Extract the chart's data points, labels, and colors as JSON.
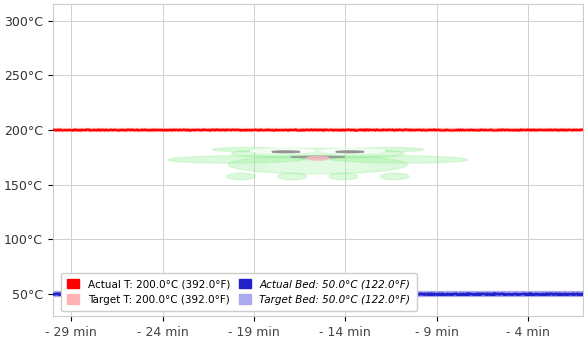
{
  "x_ticks": [
    -29,
    -24,
    -19,
    -14,
    -9,
    -4
  ],
  "x_tick_labels": [
    "- 29 min",
    "- 24 min",
    "- 19 min",
    "- 14 min",
    "- 9 min",
    "- 4 min"
  ],
  "x_min": -30,
  "x_max": -1,
  "y_ticks": [
    50,
    100,
    150,
    200,
    250,
    300
  ],
  "y_tick_labels": [
    "50°C",
    "100°C",
    "150°C",
    "200°C",
    "250°C",
    "300°C"
  ],
  "y_min": 30,
  "y_max": 315,
  "hotend_actual_temp": 200.0,
  "hotend_target_temp": 200.0,
  "bed_actual_temp": 50.0,
  "bed_target_temp": 50.0,
  "hotend_variation": 0.5,
  "bed_variation": 0.5,
  "color_actual_hotend": "#ff0000",
  "color_target_hotend": "#ffb3b3",
  "color_actual_bed": "#2222cc",
  "color_target_bed": "#aaaaee",
  "background_color": "#ffffff",
  "grid_color": "#d0d0d0",
  "legend_labels": [
    "Actual T: 200.0°C (392.0°F)",
    "Target T: 200.0°C (392.0°F)",
    "Actual Bed: 50.0°C (122.0°F)",
    "Target Bed: 50.0°C (122.0°F)"
  ],
  "logo_color": "#90ee90",
  "logo_alpha": 0.3
}
